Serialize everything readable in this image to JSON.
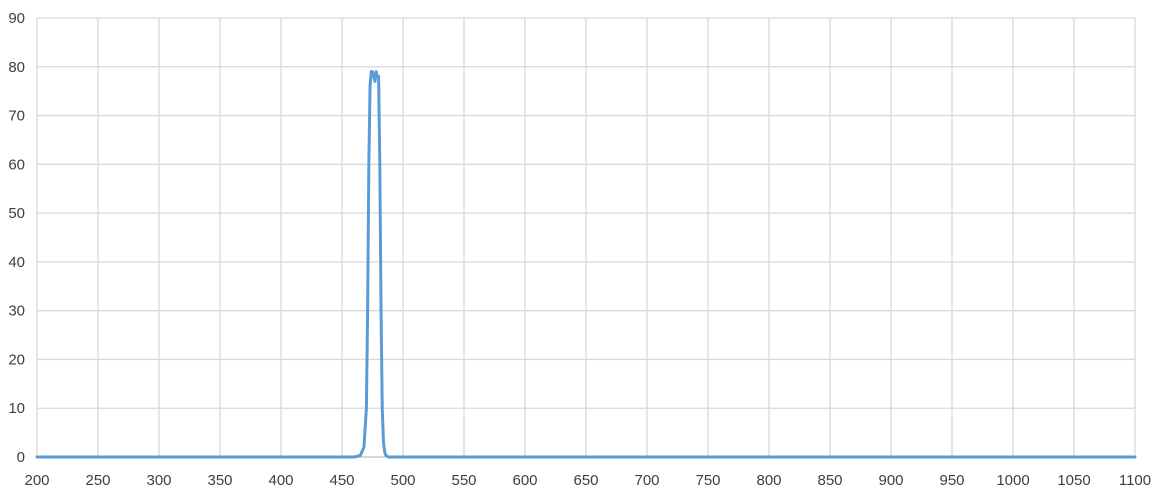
{
  "chart_data": {
    "type": "line",
    "title": "",
    "xlabel": "",
    "ylabel": "",
    "xlim": [
      200,
      1100
    ],
    "ylim": [
      0,
      90
    ],
    "x_ticks": [
      "200",
      "250",
      "300",
      "350",
      "400",
      "450",
      "500",
      "550",
      "600",
      "650",
      "700",
      "750",
      "800",
      "850",
      "900",
      "950",
      "1000",
      "1050",
      "1100"
    ],
    "y_ticks": [
      "0",
      "10",
      "20",
      "30",
      "40",
      "50",
      "60",
      "70",
      "80",
      "90"
    ],
    "grid": true,
    "legend": "none",
    "series": [
      {
        "color": "#5b9bd5",
        "x": [
          200,
          460,
          465,
          468,
          470,
          471,
          472,
          473,
          474,
          475,
          476,
          477,
          478,
          479,
          480,
          481,
          482,
          483,
          484,
          485,
          486,
          488,
          490,
          500,
          1100
        ],
        "y": [
          0,
          0,
          0.3,
          2,
          10,
          30,
          60,
          76,
          79,
          79,
          78,
          77,
          79,
          78,
          78,
          60,
          30,
          10,
          3,
          1,
          0.3,
          0,
          0,
          0,
          0
        ]
      }
    ]
  }
}
